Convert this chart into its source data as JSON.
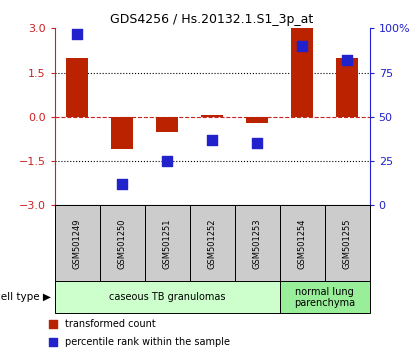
{
  "title": "GDS4256 / Hs.20132.1.S1_3p_at",
  "samples": [
    "GSM501249",
    "GSM501250",
    "GSM501251",
    "GSM501252",
    "GSM501253",
    "GSM501254",
    "GSM501255"
  ],
  "red_values": [
    2.0,
    -1.1,
    -0.5,
    0.05,
    -0.2,
    3.0,
    2.0
  ],
  "blue_values": [
    97,
    12,
    25,
    37,
    35,
    90,
    82
  ],
  "ylim": [
    -3,
    3
  ],
  "yticks_left": [
    -3,
    -1.5,
    0,
    1.5,
    3
  ],
  "yticks_right": [
    0,
    25,
    50,
    75,
    100
  ],
  "bar_color": "#bb2200",
  "dot_color": "#2222cc",
  "hline_color": "#cc2222",
  "dotline_color": "#000000",
  "cell_type_groups": [
    {
      "label": "caseous TB granulomas",
      "start": 0,
      "end": 5,
      "color": "#ccffcc"
    },
    {
      "label": "normal lung\nparenchyma",
      "start": 5,
      "end": 7,
      "color": "#99ee99"
    }
  ],
  "legend_red": "transformed count",
  "legend_blue": "percentile rank within the sample",
  "cell_type_label": "cell type",
  "sample_box_color": "#cccccc",
  "background_color": "#ffffff"
}
